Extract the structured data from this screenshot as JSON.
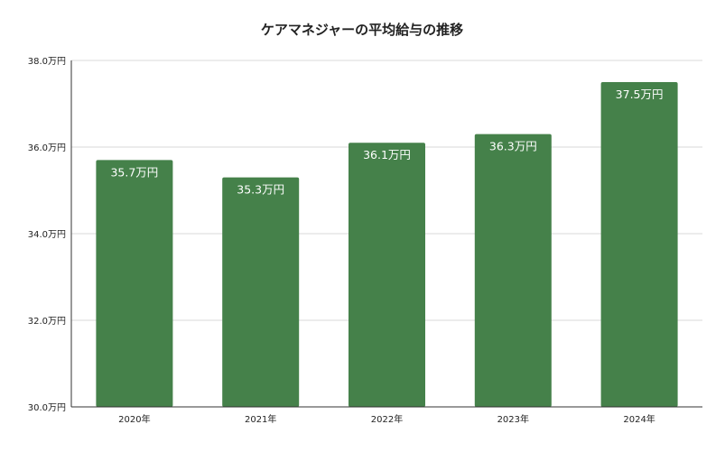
{
  "chart_data": {
    "type": "bar",
    "title": "ケアマネジャーの平均給与の推移",
    "xlabel": "",
    "ylabel": "",
    "categories": [
      "2020年",
      "2021年",
      "2022年",
      "2023年",
      "2024年"
    ],
    "values": [
      35.7,
      35.3,
      36.1,
      36.3,
      37.5
    ],
    "data_labels": [
      "35.7万円",
      "35.3万円",
      "36.1万円",
      "36.3万円",
      "37.5万円"
    ],
    "ylim": [
      30,
      38
    ],
    "y_ticks": [
      {
        "value": 30,
        "label": "30.0万円"
      },
      {
        "value": 32,
        "label": "32.0万円"
      },
      {
        "value": 34,
        "label": "34.0万円"
      },
      {
        "value": 36,
        "label": "36.0万円"
      },
      {
        "value": 38,
        "label": "38.0万円"
      }
    ],
    "grid": true,
    "legend": "none",
    "bar_color": "#45814a"
  }
}
